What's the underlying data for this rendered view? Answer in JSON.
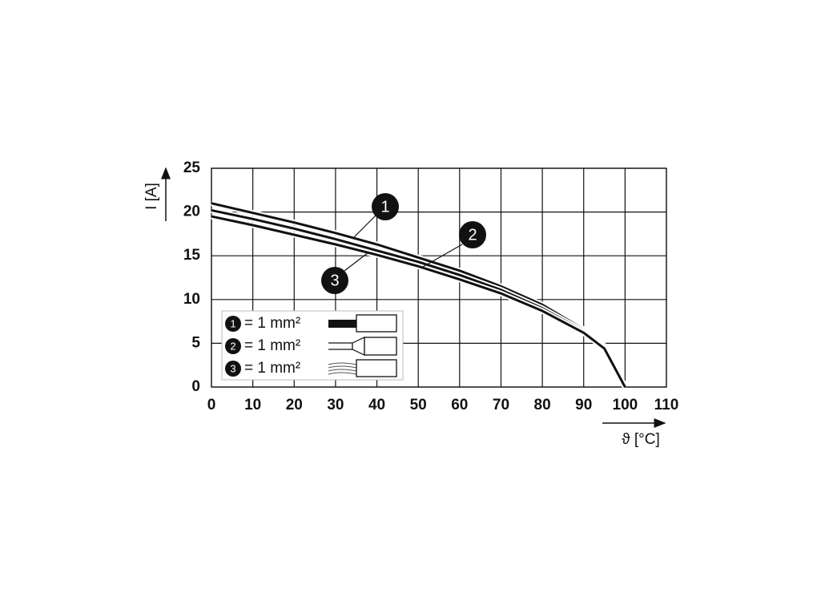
{
  "chart_data": {
    "type": "line",
    "x": [
      0,
      10,
      20,
      30,
      40,
      50,
      60,
      70,
      80,
      90,
      95,
      100
    ],
    "series": [
      {
        "name": "1",
        "label": "= 1 mm²",
        "color": "#111111",
        "values": [
          21,
          19.9,
          18.8,
          17.6,
          16.3,
          14.8,
          13.3,
          11.5,
          9.4,
          6.6,
          4.7,
          0
        ]
      },
      {
        "name": "2",
        "label": "= 1 mm²",
        "color": "#111111",
        "values": [
          20.2,
          19.2,
          18.1,
          16.9,
          15.6,
          14.3,
          12.8,
          11.1,
          9.0,
          6.4,
          4.5,
          0
        ]
      },
      {
        "name": "3",
        "label": "= 1 mm²",
        "color": "#111111",
        "values": [
          19.5,
          18.5,
          17.4,
          16.3,
          15.1,
          13.8,
          12.3,
          10.7,
          8.7,
          6.2,
          4.4,
          0
        ]
      }
    ],
    "x_label": "ϑ [°C]",
    "y_label": "I [A]",
    "xlim": [
      0,
      110
    ],
    "xticks": [
      0,
      10,
      20,
      30,
      40,
      50,
      60,
      70,
      80,
      90,
      100,
      110
    ],
    "ylim": [
      0,
      25
    ],
    "yticks": [
      0,
      5,
      10,
      15,
      20,
      25
    ],
    "grid": true
  }
}
